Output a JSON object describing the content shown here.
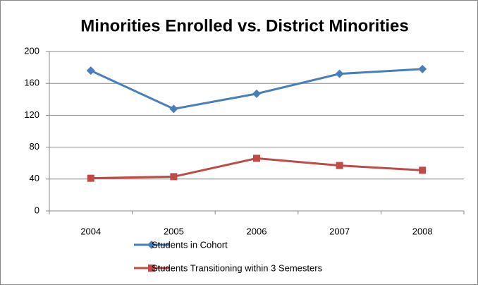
{
  "chart_data": {
    "type": "line",
    "title": "Minorities Enrolled vs. District Minorities",
    "categories": [
      "2004",
      "2005",
      "2006",
      "2007",
      "2008"
    ],
    "series": [
      {
        "name": "Students in Cohort",
        "color": "#4a7ebb",
        "marker": "diamond",
        "values": [
          176,
          128,
          147,
          172,
          178
        ]
      },
      {
        "name": "Students Transitioning within 3 Semesters",
        "color": "#be4b48",
        "marker": "square",
        "values": [
          41,
          43,
          66,
          57,
          51
        ]
      }
    ],
    "ylim": [
      0,
      200
    ],
    "yticks": [
      0,
      40,
      80,
      120,
      160,
      200
    ],
    "grid": true,
    "legend": "bottom"
  }
}
